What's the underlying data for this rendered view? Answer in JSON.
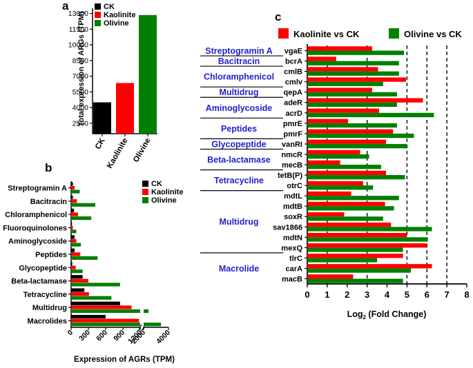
{
  "chart_data": [
    {
      "panel": "a",
      "type": "bar",
      "ylabel": "Total expression of ARGs (TPM)",
      "ylim": [
        1500,
        13500
      ],
      "yticks": [
        2500,
        4000,
        5500,
        7000,
        8500,
        10000,
        11500,
        13000
      ],
      "categories": [
        "CK",
        "Kaolinite",
        "Olivine"
      ],
      "values": [
        4500,
        6350,
        12850
      ],
      "colors": [
        "#000000",
        "#ff0000",
        "#008000"
      ],
      "legend": [
        "CK",
        "Kaolinite",
        "Olivine"
      ]
    },
    {
      "panel": "b",
      "type": "bar",
      "orientation": "horizontal",
      "xlabel": "Expression of AGRs (TPM)",
      "xticks": [
        "0",
        "300",
        "600",
        "900",
        "1200",
        "2000",
        "4000"
      ],
      "x_break": "1200 to 2000",
      "categories": [
        "Streptogramin A",
        "Bacitracin",
        "Chloramphenicol",
        "Fluoroquinolones",
        "Aminoglycoside",
        "Peptides",
        "Glycopeptide",
        "Beta-lactamase",
        "Tetracycline",
        "Multidrug",
        "Macrolides"
      ],
      "series": [
        {
          "name": "CK",
          "color": "#000000",
          "values": [
            30,
            30,
            50,
            15,
            60,
            60,
            20,
            200,
            230,
            850,
            600
          ]
        },
        {
          "name": "Kaolinite",
          "color": "#ff0000",
          "values": [
            60,
            100,
            120,
            30,
            90,
            160,
            80,
            300,
            310,
            1050,
            1180
          ]
        },
        {
          "name": "Olivine",
          "color": "#008000",
          "values": [
            150,
            420,
            350,
            90,
            170,
            460,
            200,
            850,
            700,
            2400,
            3400
          ]
        }
      ]
    },
    {
      "panel": "c",
      "type": "bar",
      "orientation": "horizontal",
      "xlabel_main": "Log",
      "xlabel_sub": "2",
      "xlabel_rest": " (Fold Change)",
      "xlim": [
        0,
        8
      ],
      "xticks": [
        "0",
        "1",
        "2",
        "3",
        "4",
        "5",
        "6",
        "7",
        "8"
      ],
      "reference_lines": [
        1,
        3,
        5,
        6,
        7
      ],
      "legend": [
        "Kaolinite vs CK",
        "Olivine vs CK"
      ],
      "genes": [
        "vgaE",
        "bcrA",
        "cmlB",
        "cmlv",
        "qepA",
        "adeR",
        "acrD",
        "pmrE",
        "pmrF",
        "vanRI",
        "nmcR",
        "mecB",
        "tetB(P)",
        "otrC",
        "mdtL",
        "mdtB",
        "soxR",
        "sav1866",
        "mdtN",
        "mexQ",
        "tlrC",
        "carA",
        "macB"
      ],
      "series": [
        {
          "name": "Kaolinite vs CK",
          "color": "#ff0000",
          "values": [
            3.25,
            1.45,
            3.55,
            4.95,
            3.25,
            5.8,
            3.6,
            2.05,
            4.3,
            3.95,
            2.65,
            1.65,
            3.95,
            2.8,
            2.2,
            3.9,
            1.85,
            4.2,
            5.0,
            6.0,
            4.8,
            6.25,
            2.3
          ]
        },
        {
          "name": "Olivine vs CK",
          "color": "#008000",
          "values": [
            4.85,
            4.6,
            4.6,
            3.8,
            4.5,
            4.5,
            6.35,
            4.5,
            5.35,
            5.0,
            3.1,
            3.7,
            4.9,
            3.3,
            4.6,
            4.35,
            3.8,
            6.25,
            6.05,
            4.8,
            3.5,
            5.2,
            4.8
          ]
        }
      ],
      "groups": [
        {
          "label": "Streptogramin A"
        },
        {
          "label": "Bacitracin"
        },
        {
          "label": "Chloramphenicol"
        },
        {
          "label": "Multidrug"
        },
        {
          "label": "Aminoglycoside"
        },
        {
          "label": "Peptides"
        },
        {
          "label": "Glycopeptide"
        },
        {
          "label": "Beta-lactamase"
        },
        {
          "label": "Tetracycline"
        },
        {
          "label": "Multidrug"
        },
        {
          "label": "Macrolide"
        }
      ]
    }
  ],
  "panel_labels": {
    "a": "a",
    "b": "b",
    "c": "c"
  },
  "label_color": "#1f1fd0"
}
